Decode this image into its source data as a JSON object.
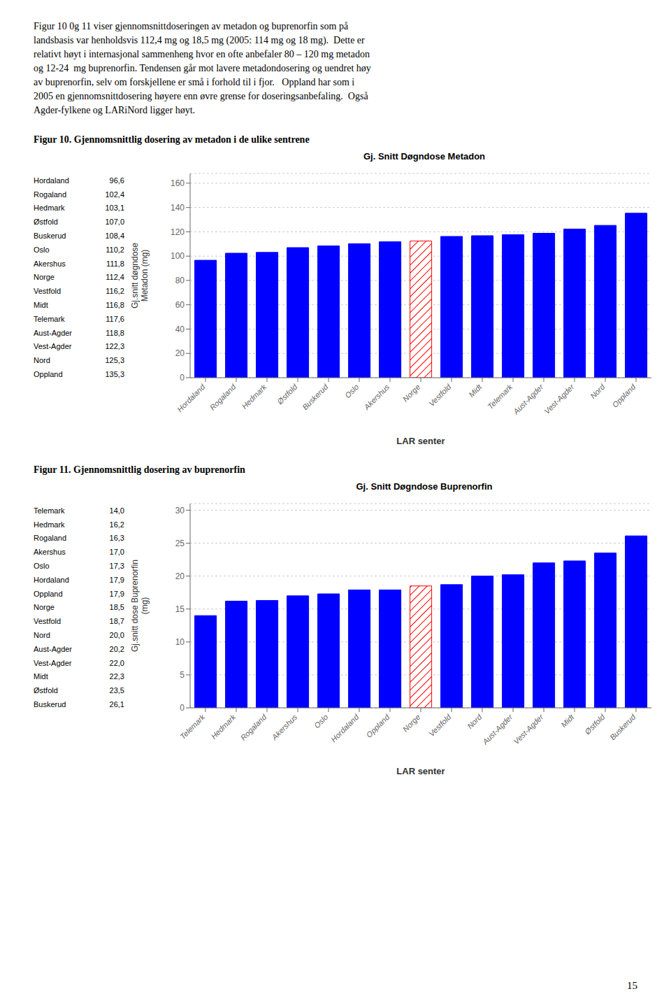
{
  "annotations": [
    "Figur 10 0g 11 viser gjennomsnittdoseringen av metadon og buprenorfin som på",
    "landsbasis var henholdsvis 112,4 mg og 18,5 mg (2005: 114 mg og 18 mg).  Dette er",
    "relativt høyt i internasjonal sammenheng hvor en ofte anbefaler 80 – 120 mg metadon",
    "og 12-24  mg buprenorfin. Tendensen går mot lavere metadondosering og uendret høy",
    "av buprenorfin, selv om forskjellene er små i forhold til i fjor.   Oppland har som i",
    "2005 en gjennomsnittdosering høyere enn øvre grense for doseringsanbefaling.  Også",
    "Agder-fylkene og LARiNord ligger høyt."
  ],
  "page_number": "15",
  "chart_data": [
    {
      "type": "bar",
      "subtitle": "Figur 10. Gjennomsnittlig dosering av metadon i de ulike sentrene",
      "title": "Gj. Snitt Døgndose Metadon",
      "xlabel": "LAR senter",
      "ylabel": "Gj.snitt døgndose\nMetadon (mg)",
      "categories": [
        "Hordaland",
        "Rogaland",
        "Hedmark",
        "Østfold",
        "Buskerud",
        "Oslo",
        "Akershus",
        "Norge",
        "Vestfold",
        "Midt",
        "Telemark",
        "Aust-Agder",
        "Vest-Agder",
        "Nord",
        "Oppland"
      ],
      "values": [
        96.6,
        102.4,
        103.1,
        107.0,
        108.4,
        110.2,
        111.8,
        112.4,
        116.2,
        116.8,
        117.6,
        118.8,
        122.3,
        125.3,
        135.3
      ],
      "value_labels": [
        "96,6",
        "102,4",
        "103,1",
        "107,0",
        "108,4",
        "110,2",
        "111,8",
        "112,4",
        "116,2",
        "116,8",
        "117,6",
        "118,8",
        "122,3",
        "125,3",
        "135,3"
      ],
      "colors": [
        "#0000FF",
        "#0000FF",
        "#0000FF",
        "#0000FF",
        "#0000FF",
        "#0000FF",
        "#0000FF",
        "#FF0000",
        "#0000FF",
        "#0000FF",
        "#0000FF",
        "#0000FF",
        "#0000FF",
        "#0000FF",
        "#0000FF"
      ],
      "ylim": [
        0,
        168
      ],
      "yticks": [
        0,
        20,
        40,
        60,
        80,
        100,
        120,
        140,
        160
      ],
      "grid": true
    },
    {
      "type": "bar",
      "subtitle": "Figur 11. Gjennomsnittlig dosering av buprenorfin",
      "title": "Gj. Snitt Døgndose Buprenorfin",
      "xlabel": "LAR senter",
      "ylabel": "Gj.snitt dose Buprenorfin\n(mg)",
      "categories": [
        "Telemark",
        "Hedmark",
        "Rogaland",
        "Akershus",
        "Oslo",
        "Hordaland",
        "Oppland",
        "Norge",
        "Vestfold",
        "Nord",
        "Aust-Agder",
        "Vest-Agder",
        "Midt",
        "Østfold",
        "Buskerud"
      ],
      "values": [
        14.0,
        16.2,
        16.3,
        17.0,
        17.3,
        17.9,
        17.9,
        18.5,
        18.7,
        20.0,
        20.2,
        22.0,
        22.3,
        23.5,
        26.1
      ],
      "value_labels": [
        "14,0",
        "16,2",
        "16,3",
        "17,0",
        "17,3",
        "17,9",
        "17,9",
        "18,5",
        "18,7",
        "20,0",
        "20,2",
        "22,0",
        "22,3",
        "23,5",
        "26,1"
      ],
      "colors": [
        "#0000FF",
        "#0000FF",
        "#0000FF",
        "#0000FF",
        "#0000FF",
        "#0000FF",
        "#0000FF",
        "#FF0000",
        "#0000FF",
        "#0000FF",
        "#0000FF",
        "#0000FF",
        "#0000FF",
        "#0000FF",
        "#0000FF"
      ],
      "ylim": [
        0,
        31
      ],
      "yticks": [
        0,
        5,
        10,
        15,
        20,
        25,
        30
      ],
      "grid": true
    }
  ]
}
